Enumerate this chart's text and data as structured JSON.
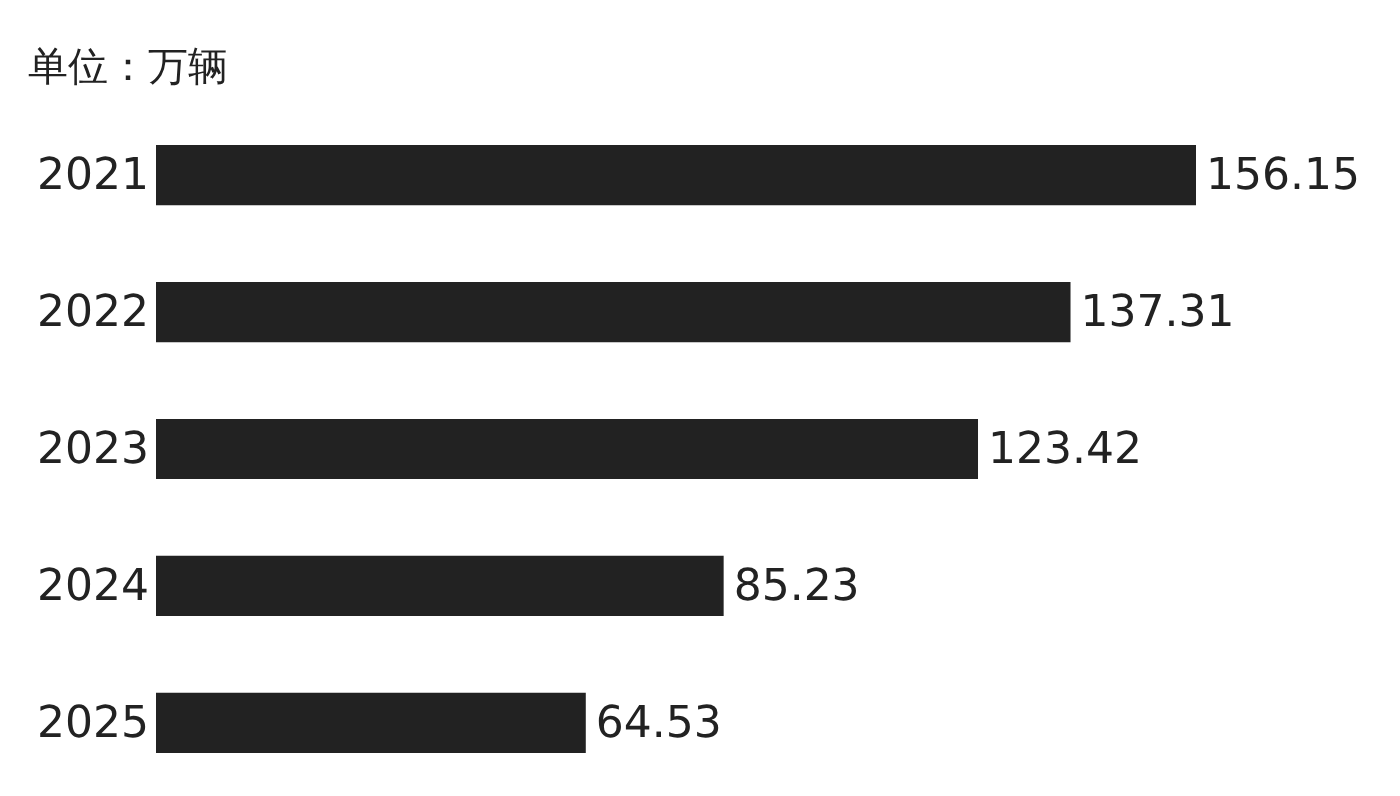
{
  "chart_data": {
    "type": "bar",
    "orientation": "horizontal",
    "title": "单位：万辆",
    "categories": [
      "2021",
      "2022",
      "2023",
      "2024",
      "2025"
    ],
    "values": [
      156.15,
      137.31,
      123.42,
      85.23,
      64.53
    ],
    "color": "#222222",
    "data_labels": true
  }
}
